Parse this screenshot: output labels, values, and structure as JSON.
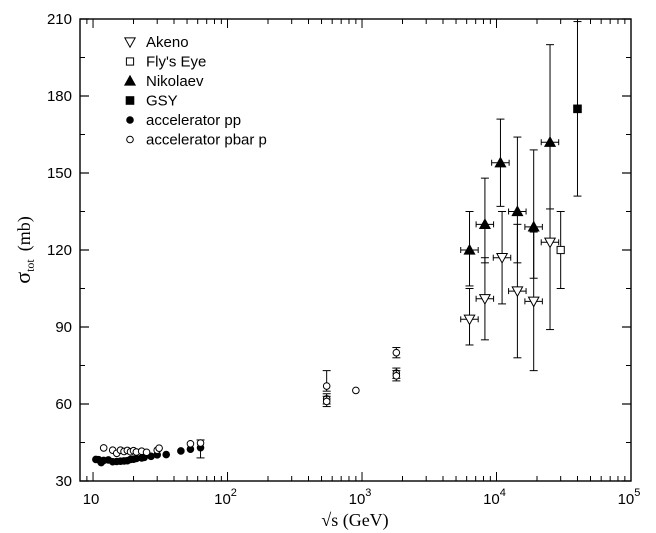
{
  "chart_data": {
    "type": "scatter",
    "xlabel": "√s  (GeV)",
    "ylabel_main": "σ",
    "ylabel_sub": "tot",
    "ylabel_unit": "(mb)",
    "xscale": "log",
    "xlim": [
      8,
      100000
    ],
    "ylim": [
      30,
      210
    ],
    "yticks": [
      30,
      60,
      90,
      120,
      150,
      180,
      210
    ],
    "xticks": [
      {
        "base": "10",
        "exp": ""
      },
      {
        "base": "10",
        "exp": "2"
      },
      {
        "base": "10",
        "exp": "3"
      },
      {
        "base": "10",
        "exp": "4"
      },
      {
        "base": "10",
        "exp": "5"
      }
    ],
    "xtick_values": [
      10,
      100,
      1000,
      10000,
      100000
    ],
    "grid": false,
    "legend_position": "top-left",
    "series": [
      {
        "name": "Akeno",
        "marker": "triangle-down-open",
        "points": [
          {
            "x": 6300,
            "y": 93,
            "yerr": [
              10,
              12
            ]
          },
          {
            "x": 8200,
            "y": 101,
            "yerr": [
              16,
              16
            ]
          },
          {
            "x": 11000,
            "y": 117,
            "yerr": [
              18,
              18
            ]
          },
          {
            "x": 14300,
            "y": 104,
            "yerr": [
              26,
              26
            ]
          },
          {
            "x": 18900,
            "y": 100,
            "yerr": [
              27,
              27
            ]
          },
          {
            "x": 25000,
            "y": 123,
            "yerr": [
              34,
              38
            ]
          }
        ]
      },
      {
        "name": "Fly's Eye",
        "marker": "square-open",
        "points": [
          {
            "x": 30000,
            "y": 120,
            "yerr": [
              15,
              15
            ]
          }
        ]
      },
      {
        "name": "Nikolaev",
        "marker": "triangle-up-filled",
        "points": [
          {
            "x": 6300,
            "y": 120,
            "yerr": [
              14,
              15
            ]
          },
          {
            "x": 8200,
            "y": 130,
            "yerr": [
              15,
              18
            ]
          },
          {
            "x": 10700,
            "y": 154,
            "yerr": [
              17,
              17
            ]
          },
          {
            "x": 14300,
            "y": 135,
            "yerr": [
              20,
              29
            ]
          },
          {
            "x": 18900,
            "y": 129,
            "yerr": [
              20,
              30
            ]
          },
          {
            "x": 25000,
            "y": 162,
            "yerr": [
              26,
              38
            ]
          }
        ]
      },
      {
        "name": "GSY",
        "marker": "square-filled",
        "points": [
          {
            "x": 40000,
            "y": 175,
            "yerr": [
              34,
              34
            ]
          }
        ]
      },
      {
        "name": "accelerator pp",
        "marker": "circle-filled",
        "points": [
          {
            "x": 10.5,
            "y": 38.4
          },
          {
            "x": 11.0,
            "y": 38.3
          },
          {
            "x": 11.5,
            "y": 37.2
          },
          {
            "x": 12.0,
            "y": 38.0
          },
          {
            "x": 13.0,
            "y": 38.2
          },
          {
            "x": 14.0,
            "y": 37.5
          },
          {
            "x": 15.0,
            "y": 37.6
          },
          {
            "x": 16.0,
            "y": 37.7
          },
          {
            "x": 17.0,
            "y": 37.8
          },
          {
            "x": 18.0,
            "y": 37.9
          },
          {
            "x": 19.0,
            "y": 38.4
          },
          {
            "x": 20.0,
            "y": 38.5
          },
          {
            "x": 21.0,
            "y": 38.8
          },
          {
            "x": 23.0,
            "y": 39.0
          },
          {
            "x": 24.0,
            "y": 39.2
          },
          {
            "x": 27.0,
            "y": 39.6
          },
          {
            "x": 30.0,
            "y": 40.2
          },
          {
            "x": 35.0,
            "y": 40.3
          },
          {
            "x": 45.0,
            "y": 41.7
          },
          {
            "x": 53.0,
            "y": 42.4
          },
          {
            "x": 63.0,
            "y": 43.0,
            "yerr": [
              4,
              3
            ]
          }
        ]
      },
      {
        "name": "accelerator pbar p",
        "marker": "circle-open",
        "points": [
          {
            "x": 12.0,
            "y": 42.9
          },
          {
            "x": 14.0,
            "y": 42.0
          },
          {
            "x": 15.0,
            "y": 40.8
          },
          {
            "x": 16.0,
            "y": 42.0
          },
          {
            "x": 17.0,
            "y": 41.5
          },
          {
            "x": 18.0,
            "y": 41.9
          },
          {
            "x": 19.0,
            "y": 41.4
          },
          {
            "x": 20.0,
            "y": 41.8
          },
          {
            "x": 21.0,
            "y": 41.3
          },
          {
            "x": 23.0,
            "y": 41.6
          },
          {
            "x": 25.0,
            "y": 41.2
          },
          {
            "x": 30.0,
            "y": 42.0
          },
          {
            "x": 31.0,
            "y": 42.8
          },
          {
            "x": 53.0,
            "y": 44.5
          },
          {
            "x": 63.0,
            "y": 44.8
          },
          {
            "x": 546,
            "y": 67,
            "yerr": [
              2,
              6
            ]
          },
          {
            "x": 546,
            "y": 62,
            "yerr": [
              2,
              2
            ]
          },
          {
            "x": 546,
            "y": 61,
            "yerr": [
              2,
              2
            ]
          },
          {
            "x": 900,
            "y": 65.3
          },
          {
            "x": 1800,
            "y": 80,
            "yerr": [
              2,
              2
            ]
          },
          {
            "x": 1800,
            "y": 72,
            "yerr": [
              2,
              2
            ]
          },
          {
            "x": 1800,
            "y": 71,
            "yerr": [
              2,
              2
            ]
          }
        ]
      }
    ]
  }
}
